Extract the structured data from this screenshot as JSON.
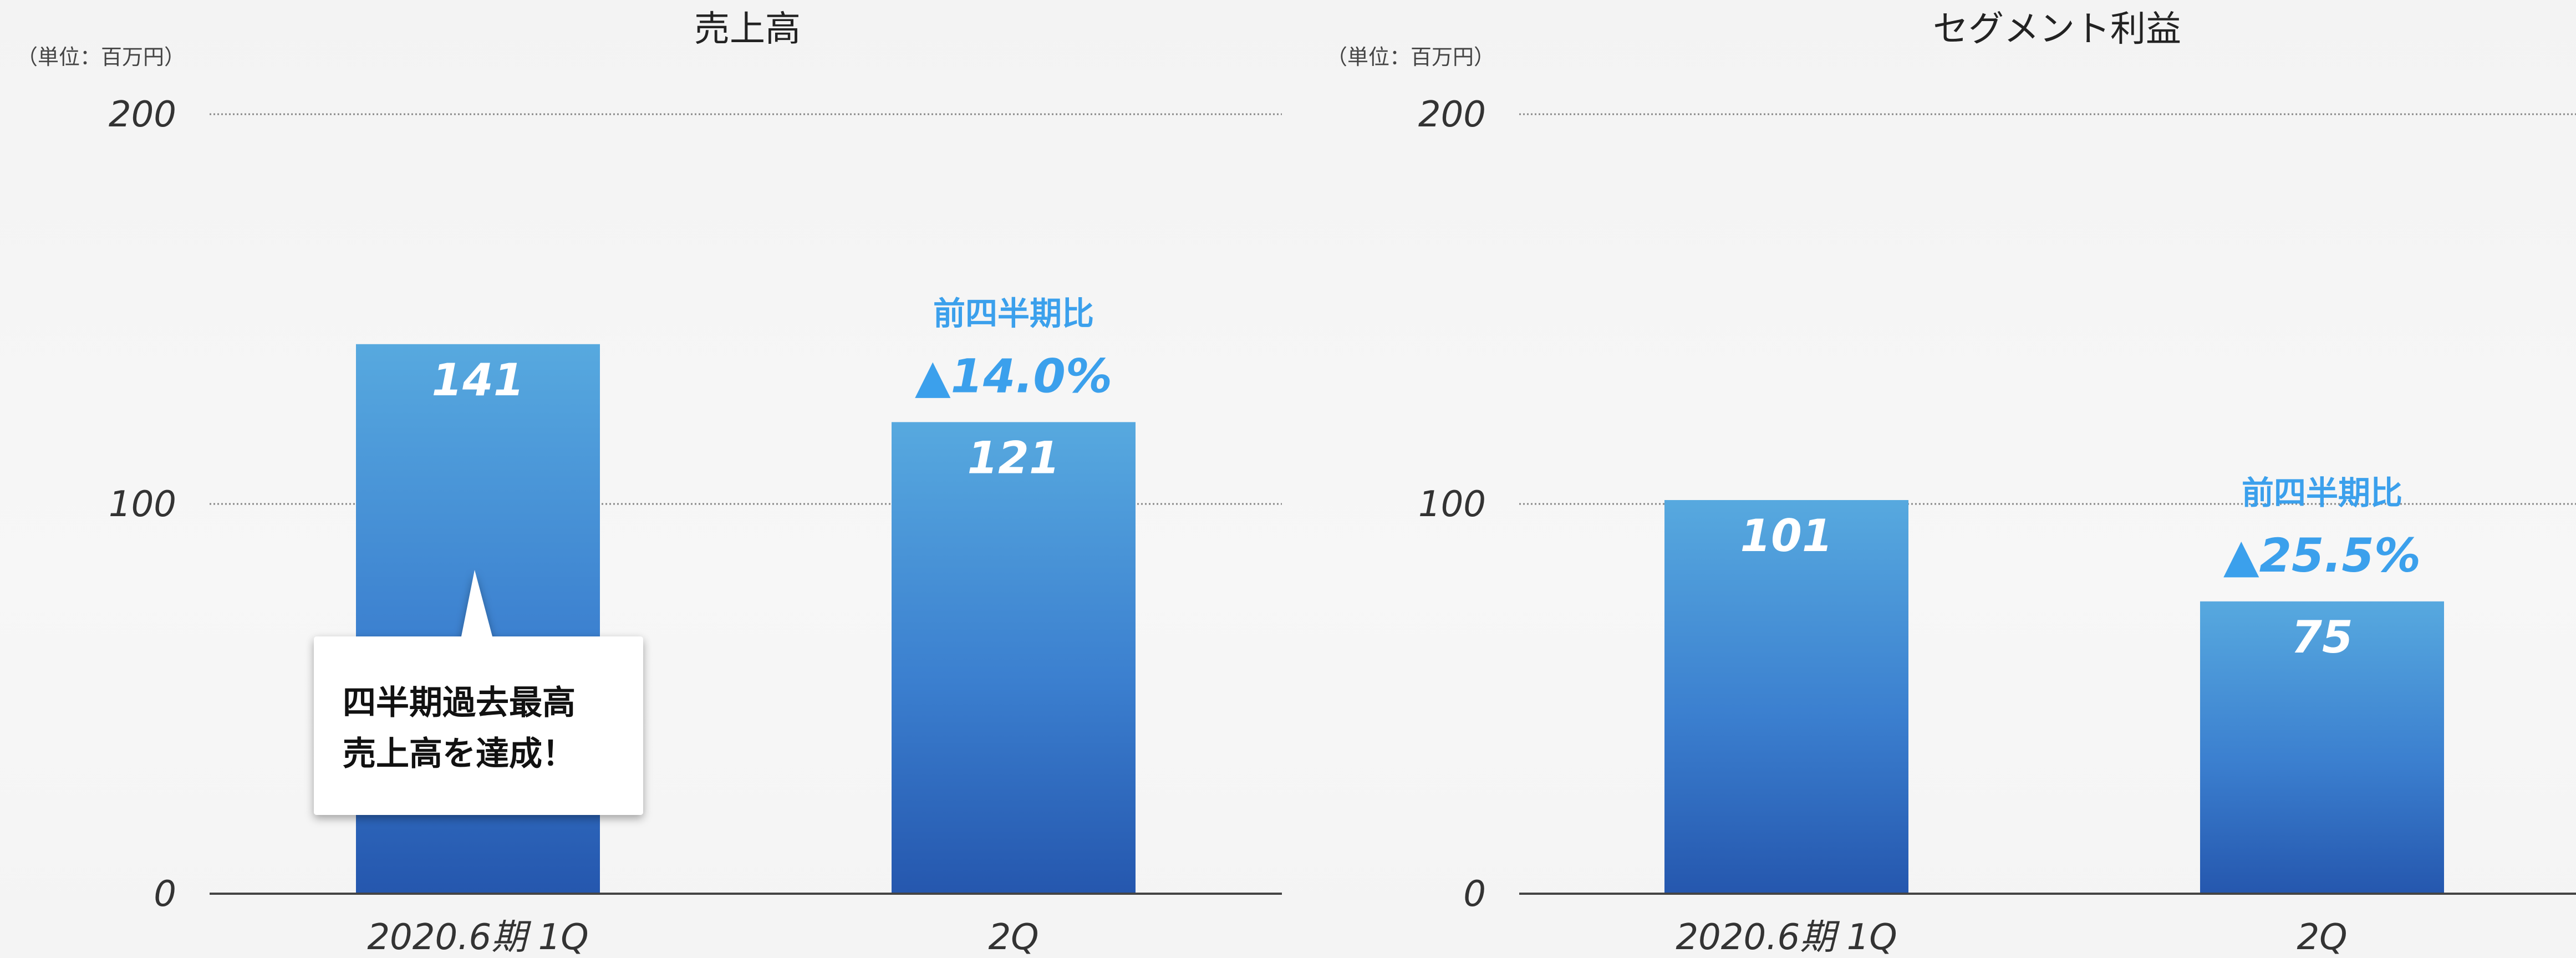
{
  "chart_data": [
    {
      "type": "bar",
      "title": "売上高",
      "unit_label": "（単位：百万円）",
      "categories": [
        "2020.6期 1Q",
        "2Q"
      ],
      "values": [
        141,
        121
      ],
      "value_labels": [
        "141",
        "121"
      ],
      "ylim": [
        0,
        200
      ],
      "yticks": [
        "0",
        "100",
        "200"
      ],
      "grid": true,
      "growth": {
        "category": "2Q",
        "label": "前四半期比",
        "value": "▲14.0%"
      },
      "callout": {
        "category": "2020.6期 1Q",
        "lines": [
          "四半期過去最高",
          "売上高を達成！"
        ]
      }
    },
    {
      "type": "bar",
      "title": "セグメント利益",
      "unit_label": "（単位：百万円）",
      "categories": [
        "2020.6期 1Q",
        "2Q"
      ],
      "values": [
        101,
        75
      ],
      "value_labels": [
        "101",
        "75"
      ],
      "ylim": [
        0,
        200
      ],
      "yticks": [
        "0",
        "100",
        "200"
      ],
      "grid": true,
      "growth": {
        "category": "2Q",
        "label": "前四半期比",
        "value": "▲25.5%"
      }
    }
  ],
  "colors": {
    "bar_top": "#57a9df",
    "bar_bottom": "#2557ae",
    "accent": "#3ba0ec",
    "grid": "#888888",
    "axis": "#444444",
    "text": "#222222"
  }
}
